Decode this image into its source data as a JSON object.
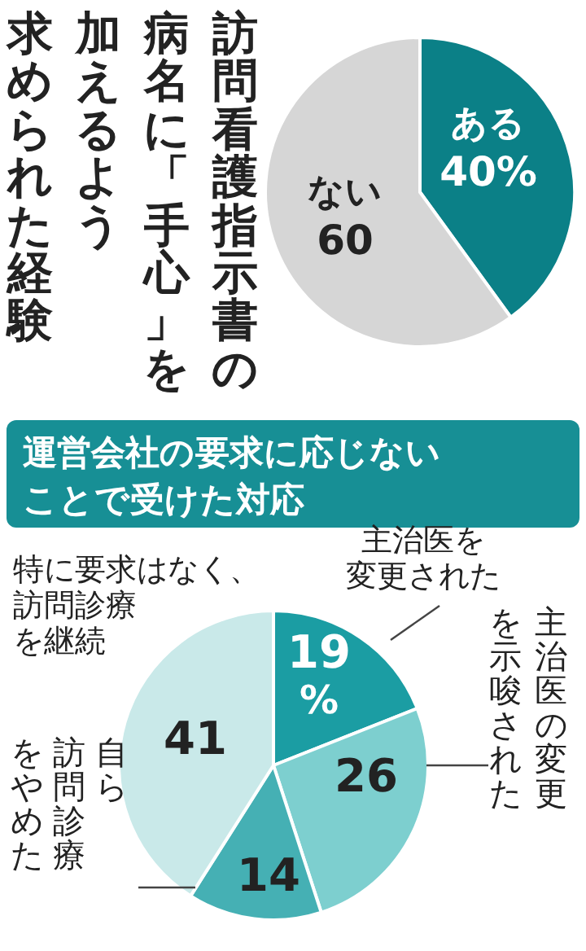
{
  "chart_data": [
    {
      "type": "pie",
      "title": "訪問看護指示書の病名に「手心」を加えるよう求められた経験",
      "categories": [
        "ある",
        "ない"
      ],
      "values": [
        40,
        60
      ],
      "colors": [
        "#0b8087",
        "#d6d6d6"
      ],
      "value_labels": [
        "40%",
        "60"
      ],
      "legend": false
    },
    {
      "type": "pie",
      "title": "運営会社の要求に応じないことで受けた対応",
      "categories": [
        "主治医を変更された",
        "主治医の変更を示唆された",
        "自ら訪問診療をやめた",
        "特に要求はなく、訪問診療を継続"
      ],
      "values": [
        19,
        26,
        14,
        41
      ],
      "colors": [
        "#1b9da3",
        "#7dcfcf",
        "#45b0b4",
        "#c9e9e9"
      ],
      "value_labels": [
        "19%",
        "26",
        "14",
        "41"
      ],
      "legend": false
    }
  ]
}
